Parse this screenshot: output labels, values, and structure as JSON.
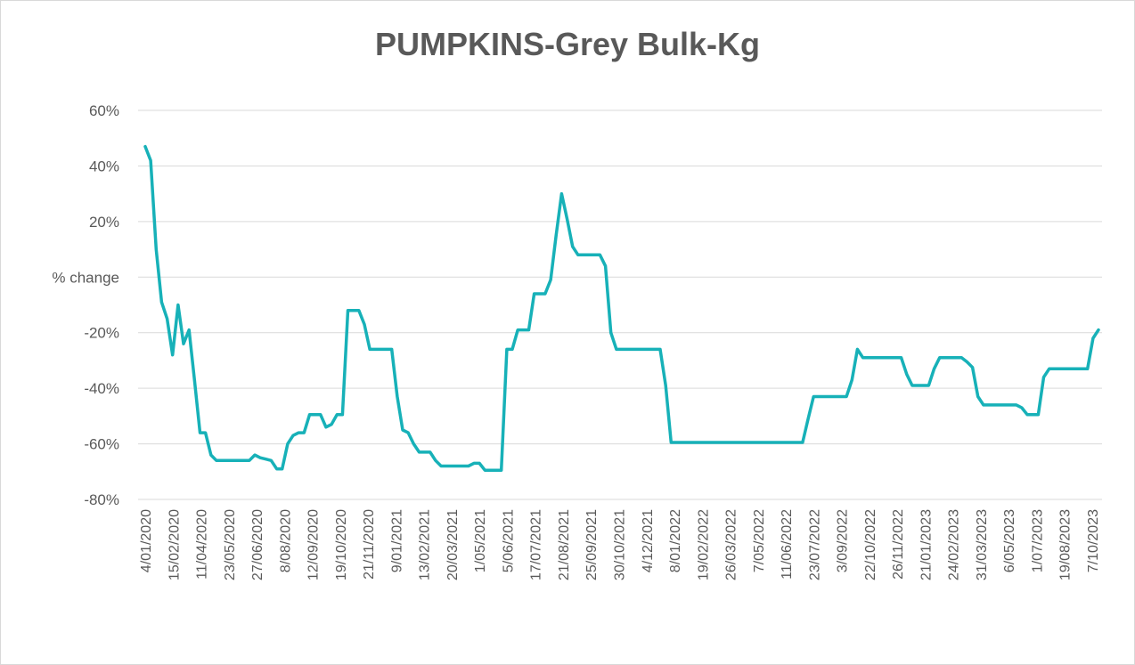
{
  "chart_data": {
    "type": "line",
    "title": "PUMPKINS-Grey Bulk-Kg",
    "ylabel": "% change",
    "xlabel": "",
    "ylim": [
      -80,
      60
    ],
    "yticks": [
      60,
      40,
      20,
      0,
      -20,
      -40,
      -60,
      -80
    ],
    "ytick_labels": [
      "60%",
      "40%",
      "20%",
      "% change",
      "-20%",
      "-40%",
      "-60%",
      "-80%"
    ],
    "x_tick_labels": [
      "4/01/2020",
      "15/02/2020",
      "11/04/2020",
      "23/05/2020",
      "27/06/2020",
      "8/08/2020",
      "12/09/2020",
      "19/10/2020",
      "21/11/2020",
      "9/01/2021",
      "13/02/2021",
      "20/03/2021",
      "1/05/2021",
      "5/06/2021",
      "17/07/2021",
      "21/08/2021",
      "25/09/2021",
      "30/10/2021",
      "4/12/2021",
      "8/01/2022",
      "19/02/2022",
      "26/03/2022",
      "7/05/2022",
      "11/06/2022",
      "23/07/2022",
      "3/09/2022",
      "22/10/2022",
      "26/11/2022",
      "21/01/2023",
      "24/02/2023",
      "31/03/2023",
      "6/05/2023",
      "1/07/2023",
      "19/08/2023",
      "7/10/2023"
    ],
    "grid": true,
    "legend": "none",
    "color": "#17b1b8",
    "series": [
      {
        "values": [
          [
            0,
            47
          ],
          [
            1,
            42
          ],
          [
            2,
            10
          ],
          [
            3,
            -9
          ],
          [
            4,
            -15
          ],
          [
            5,
            -28
          ],
          [
            6,
            -10
          ],
          [
            7,
            -24
          ],
          [
            8,
            -19
          ],
          [
            9,
            -37
          ],
          [
            10,
            -56
          ],
          [
            11,
            -56
          ],
          [
            12,
            -64
          ],
          [
            13,
            -66
          ],
          [
            14,
            -66
          ],
          [
            15,
            -66
          ],
          [
            16,
            -66
          ],
          [
            17,
            -66
          ],
          [
            18,
            -66
          ],
          [
            19,
            -66
          ],
          [
            20,
            -64
          ],
          [
            21,
            -65
          ],
          [
            22,
            -65.5
          ],
          [
            23,
            -66
          ],
          [
            24,
            -69
          ],
          [
            25,
            -69
          ],
          [
            26,
            -60
          ],
          [
            27,
            -57
          ],
          [
            28,
            -56
          ],
          [
            29,
            -56
          ],
          [
            30,
            -49.5
          ],
          [
            31,
            -49.5
          ],
          [
            32,
            -49.5
          ],
          [
            33,
            -54
          ],
          [
            34,
            -53
          ],
          [
            35,
            -49.5
          ],
          [
            36,
            -49.5
          ],
          [
            37,
            -12
          ],
          [
            38,
            -12
          ],
          [
            39,
            -12
          ],
          [
            40,
            -17
          ],
          [
            41,
            -26
          ],
          [
            42,
            -26
          ],
          [
            43,
            -26
          ],
          [
            44,
            -26
          ],
          [
            45,
            -26
          ],
          [
            46,
            -43
          ],
          [
            47,
            -55
          ],
          [
            48,
            -56
          ],
          [
            49,
            -60
          ],
          [
            50,
            -63
          ],
          [
            51,
            -63
          ],
          [
            52,
            -63
          ],
          [
            53,
            -66
          ],
          [
            54,
            -68
          ],
          [
            55,
            -68
          ],
          [
            56,
            -68
          ],
          [
            57,
            -68
          ],
          [
            58,
            -68
          ],
          [
            59,
            -68
          ],
          [
            60,
            -67
          ],
          [
            61,
            -67
          ],
          [
            62,
            -69.5
          ],
          [
            63,
            -69.5
          ],
          [
            64,
            -69.5
          ],
          [
            65,
            -69.5
          ],
          [
            66,
            -26
          ],
          [
            67,
            -26
          ],
          [
            68,
            -19
          ],
          [
            69,
            -19
          ],
          [
            70,
            -19
          ],
          [
            71,
            -6
          ],
          [
            72,
            -6
          ],
          [
            73,
            -6
          ],
          [
            74,
            -1
          ],
          [
            75,
            15
          ],
          [
            76,
            30
          ],
          [
            77,
            21
          ],
          [
            78,
            11
          ],
          [
            79,
            8
          ],
          [
            80,
            8
          ],
          [
            81,
            8
          ],
          [
            82,
            8
          ],
          [
            83,
            8
          ],
          [
            84,
            4
          ],
          [
            85,
            -20
          ],
          [
            86,
            -26
          ],
          [
            87,
            -26
          ],
          [
            88,
            -26
          ],
          [
            89,
            -26
          ],
          [
            90,
            -26
          ],
          [
            91,
            -26
          ],
          [
            92,
            -26
          ],
          [
            93,
            -26
          ],
          [
            94,
            -26
          ],
          [
            95,
            -39
          ],
          [
            96,
            -59.5
          ],
          [
            120,
            -59.5
          ],
          [
            121,
            -51
          ],
          [
            122,
            -43
          ],
          [
            123,
            -43
          ],
          [
            124,
            -43
          ],
          [
            125,
            -43
          ],
          [
            126,
            -43
          ],
          [
            127,
            -43
          ],
          [
            128,
            -43
          ],
          [
            129,
            -37
          ],
          [
            130,
            -26
          ],
          [
            131,
            -29
          ],
          [
            132,
            -29
          ],
          [
            137,
            -29
          ],
          [
            138,
            -29
          ],
          [
            139,
            -35
          ],
          [
            140,
            -39
          ],
          [
            141,
            -39
          ],
          [
            142,
            -39
          ],
          [
            143,
            -39
          ],
          [
            144,
            -33
          ],
          [
            145,
            -29
          ],
          [
            146,
            -29
          ],
          [
            147,
            -29
          ],
          [
            148,
            -29
          ],
          [
            149,
            -29
          ],
          [
            150,
            -30.5
          ],
          [
            151,
            -32.5
          ],
          [
            152,
            -43
          ],
          [
            153,
            -46
          ],
          [
            154,
            -46
          ],
          [
            159,
            -46
          ],
          [
            160,
            -47
          ],
          [
            161,
            -49.5
          ],
          [
            162,
            -49.5
          ],
          [
            163,
            -49.5
          ],
          [
            164,
            -36
          ],
          [
            165,
            -33
          ],
          [
            166,
            -33
          ],
          [
            172,
            -33
          ],
          [
            173,
            -22
          ],
          [
            174,
            -19
          ]
        ]
      }
    ]
  }
}
